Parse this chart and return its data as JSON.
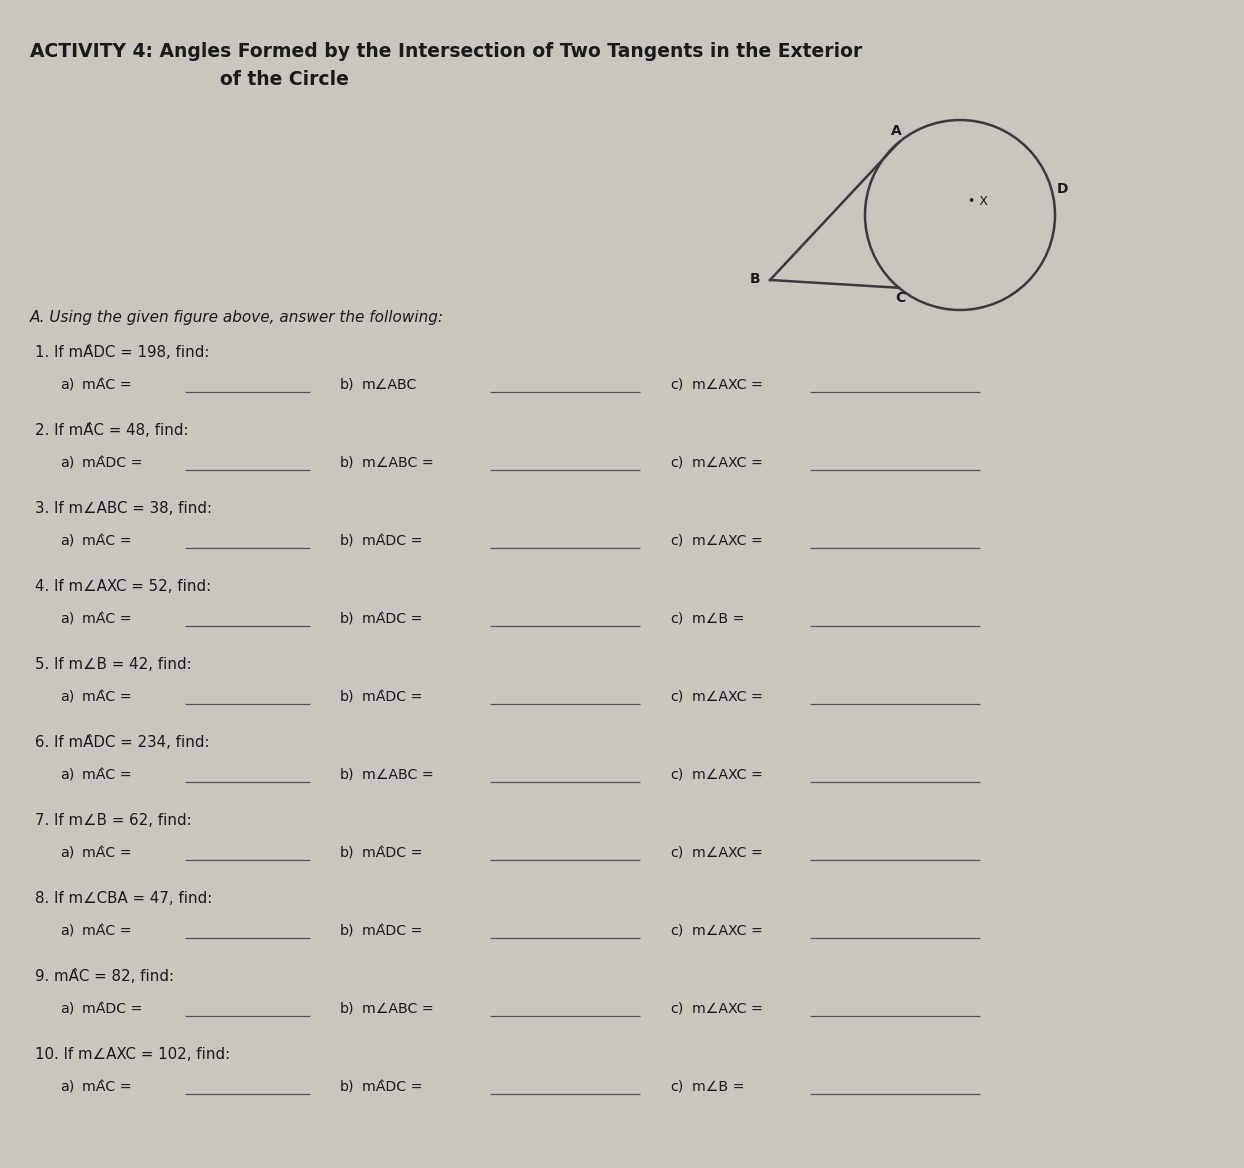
{
  "title_line1": "ACTIVITY 4: Angles Formed by the Intersection of Two Tangents in the Exterior",
  "title_line2": "of the Circle",
  "section_header": "A. Using the given figure above, answer the following:",
  "bg_color": "#cac5bf",
  "text_color": "#1a1a1a",
  "line_color": "#555555",
  "problems": [
    {
      "num": "1.",
      "condition": "If mÂDC = 198, find:",
      "cond_plain": "If mADC = 198, find:",
      "a_label": "a)",
      "a_text": "mÂC =",
      "b_label": "b)",
      "b_text": "m∠ABC",
      "c_label": "c)",
      "c_text": "m∠AXC ="
    },
    {
      "num": "2.",
      "condition": "If mÂC = 48, find:",
      "cond_plain": "If mAC = 48, find:",
      "a_label": "a)",
      "a_text": "mÂDC =",
      "b_label": "b)",
      "b_text": "m∠ABC =",
      "c_label": "c)",
      "c_text": "m∠AXC ="
    },
    {
      "num": "3.",
      "condition": "If m∠ABC = 38, find:",
      "cond_plain": "If m∠ABC = 38, find:",
      "a_label": "a)",
      "a_text": "mÂC =",
      "b_label": "b)",
      "b_text": "mÂDC =",
      "c_label": "c)",
      "c_text": "m∠AXC ="
    },
    {
      "num": "4.",
      "condition": "If m∠AXC = 52, find:",
      "cond_plain": "If m∠AXC = 52, find:",
      "a_label": "a)",
      "a_text": "mÂC =",
      "b_label": "b)",
      "b_text": "mÂDC =",
      "c_label": "c)",
      "c_text": "m∠B ="
    },
    {
      "num": "5.",
      "condition": "If m∠B = 42, find:",
      "cond_plain": "If m∠B = 42, find:",
      "a_label": "a)",
      "a_text": "mÂC =",
      "b_label": "b)",
      "b_text": "mÂDC =",
      "c_label": "c)",
      "c_text": "m∠AXC ="
    },
    {
      "num": "6.",
      "condition": "If mÂDC = 234, find:",
      "cond_plain": "If mADC = 234, find:",
      "a_label": "a)",
      "a_text": "mÂC =",
      "b_label": "b)",
      "b_text": "m∠ABC =",
      "c_label": "c)",
      "c_text": "m∠AXC ="
    },
    {
      "num": "7.",
      "condition": "If m∠B = 62, find:",
      "cond_plain": "If m∠B = 62, find:",
      "a_label": "a)",
      "a_text": "mÂC =",
      "b_label": "b)",
      "b_text": "mÂDC =",
      "c_label": "c)",
      "c_text": "m∠AXC ="
    },
    {
      "num": "8.",
      "condition": "If m∠CBA = 47, find:",
      "cond_plain": "If m∠CBA = 47, find:",
      "a_label": "a)",
      "a_text": "mÂC =",
      "b_label": "b)",
      "b_text": "mÂDC =",
      "c_label": "c)",
      "c_text": "m∠AXC ="
    },
    {
      "num": "9.",
      "condition": "mÂC = 82, find:",
      "cond_plain": "mAC = 82, find:",
      "a_label": "a)",
      "a_text": "mÂDC =",
      "b_label": "b)",
      "b_text": "m∠ABC =",
      "c_label": "c)",
      "c_text": "m∠AXC ="
    },
    {
      "num": "10.",
      "condition": "If m∠AXC = 102, find:",
      "cond_plain": "If m∠AXC = 102, find:",
      "a_label": "a)",
      "a_text": "mÂC =",
      "b_label": "b)",
      "b_text": "mÂDC =",
      "c_label": "c)",
      "c_text": "m∠B ="
    }
  ]
}
